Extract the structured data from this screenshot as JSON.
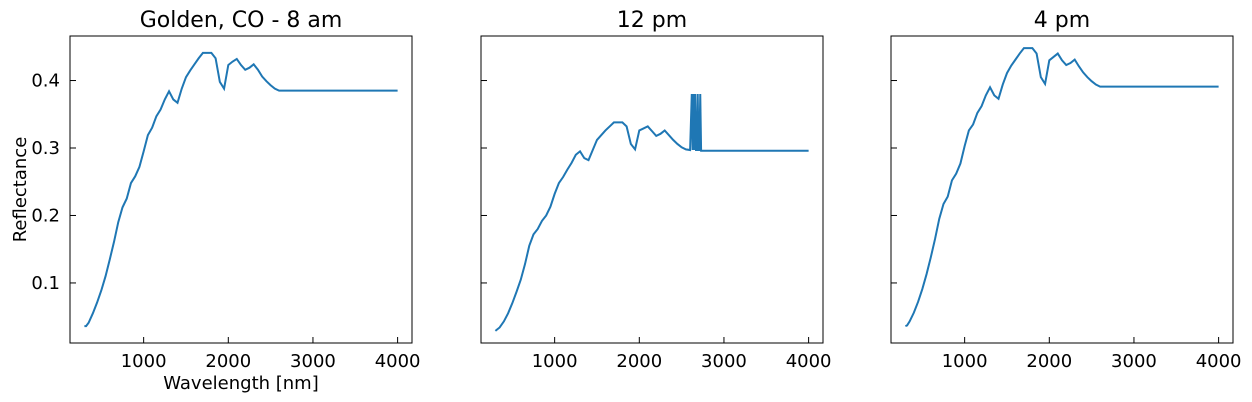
{
  "chart_data": [
    {
      "type": "line",
      "title": "Golden, CO - 8 am",
      "xlabel": "Wavelength [nm]",
      "ylabel": "Reflectance",
      "xlim": [
        130,
        4170
      ],
      "ylim": [
        0.011,
        0.466
      ],
      "xticks": [
        1000,
        2000,
        3000,
        4000
      ],
      "yticks": [
        0.1,
        0.2,
        0.3,
        0.4
      ],
      "show_yticklabels": true,
      "color": "#1f77b4",
      "x": [
        300,
        320,
        350,
        400,
        450,
        500,
        550,
        600,
        650,
        700,
        750,
        800,
        850,
        900,
        950,
        1000,
        1050,
        1100,
        1150,
        1200,
        1250,
        1300,
        1350,
        1400,
        1450,
        1500,
        1550,
        1600,
        1650,
        1700,
        1750,
        1800,
        1850,
        1900,
        1950,
        2000,
        2050,
        2100,
        2150,
        2200,
        2250,
        2300,
        2350,
        2400,
        2450,
        2500,
        2550,
        2600,
        4000
      ],
      "y": [
        0.036,
        0.036,
        0.041,
        0.055,
        0.071,
        0.089,
        0.11,
        0.135,
        0.161,
        0.19,
        0.212,
        0.225,
        0.248,
        0.258,
        0.272,
        0.295,
        0.319,
        0.33,
        0.347,
        0.357,
        0.372,
        0.384,
        0.372,
        0.367,
        0.388,
        0.405,
        0.415,
        0.424,
        0.433,
        0.441,
        0.441,
        0.441,
        0.433,
        0.398,
        0.388,
        0.423,
        0.428,
        0.432,
        0.423,
        0.416,
        0.419,
        0.424,
        0.416,
        0.406,
        0.399,
        0.393,
        0.388,
        0.385,
        0.385
      ]
    },
    {
      "type": "line",
      "title": "12 pm",
      "xlabel": "",
      "ylabel": "",
      "xlim": [
        130,
        4170
      ],
      "ylim": [
        0.011,
        0.466
      ],
      "xticks": [
        1000,
        2000,
        3000,
        4000
      ],
      "yticks": [
        0.1,
        0.2,
        0.3,
        0.4
      ],
      "show_yticklabels": false,
      "color": "#1f77b4",
      "x": [
        300,
        320,
        350,
        400,
        450,
        500,
        550,
        600,
        650,
        700,
        750,
        800,
        850,
        900,
        950,
        1000,
        1050,
        1100,
        1150,
        1200,
        1250,
        1300,
        1350,
        1400,
        1450,
        1500,
        1550,
        1600,
        1650,
        1700,
        1750,
        1800,
        1850,
        1900,
        1950,
        2000,
        2050,
        2100,
        2150,
        2200,
        2250,
        2300,
        2350,
        2400,
        2450,
        2500,
        2550,
        2600,
        2620,
        2630,
        2640,
        2650,
        2660,
        2670,
        2680,
        2690,
        2700,
        2710,
        2720,
        2730,
        4000
      ],
      "y": [
        0.029,
        0.031,
        0.034,
        0.043,
        0.055,
        0.07,
        0.087,
        0.105,
        0.128,
        0.155,
        0.172,
        0.18,
        0.192,
        0.2,
        0.213,
        0.232,
        0.248,
        0.257,
        0.268,
        0.278,
        0.29,
        0.295,
        0.285,
        0.282,
        0.297,
        0.312,
        0.319,
        0.326,
        0.332,
        0.338,
        0.338,
        0.338,
        0.332,
        0.306,
        0.298,
        0.326,
        0.329,
        0.332,
        0.325,
        0.318,
        0.321,
        0.326,
        0.319,
        0.312,
        0.306,
        0.301,
        0.298,
        0.297,
        0.38,
        0.297,
        0.38,
        0.297,
        0.38,
        0.297,
        0.297,
        0.38,
        0.297,
        0.297,
        0.38,
        0.296,
        0.296
      ]
    },
    {
      "type": "line",
      "title": "4 pm",
      "xlabel": "",
      "ylabel": "",
      "xlim": [
        130,
        4170
      ],
      "ylim": [
        0.011,
        0.466
      ],
      "xticks": [
        1000,
        2000,
        3000,
        4000
      ],
      "yticks": [
        0.1,
        0.2,
        0.3,
        0.4
      ],
      "show_yticklabels": false,
      "color": "#1f77b4",
      "x": [
        300,
        320,
        350,
        400,
        450,
        500,
        550,
        600,
        650,
        700,
        750,
        800,
        850,
        900,
        950,
        1000,
        1050,
        1100,
        1150,
        1200,
        1250,
        1300,
        1350,
        1400,
        1450,
        1500,
        1550,
        1600,
        1650,
        1700,
        1750,
        1800,
        1850,
        1900,
        1950,
        2000,
        2050,
        2100,
        2150,
        2200,
        2250,
        2300,
        2350,
        2400,
        2450,
        2500,
        2550,
        2600,
        4000
      ],
      "y": [
        0.036,
        0.037,
        0.043,
        0.056,
        0.072,
        0.091,
        0.113,
        0.138,
        0.165,
        0.195,
        0.217,
        0.228,
        0.252,
        0.262,
        0.277,
        0.303,
        0.326,
        0.335,
        0.352,
        0.362,
        0.378,
        0.39,
        0.378,
        0.373,
        0.394,
        0.411,
        0.422,
        0.431,
        0.44,
        0.448,
        0.448,
        0.448,
        0.44,
        0.405,
        0.395,
        0.43,
        0.435,
        0.44,
        0.43,
        0.423,
        0.426,
        0.431,
        0.421,
        0.412,
        0.405,
        0.399,
        0.394,
        0.391,
        0.391
      ]
    }
  ]
}
